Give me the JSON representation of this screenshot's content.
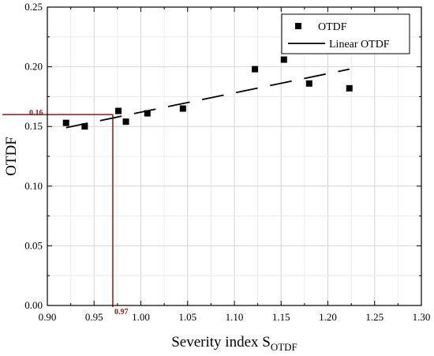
{
  "chart_data": {
    "type": "scatter",
    "xlabel_main": "Severity index S",
    "xlabel_sub": "OTDF",
    "ylabel": "OTDF",
    "xlim": [
      0.9,
      1.3
    ],
    "ylim": [
      0.0,
      0.25
    ],
    "x_ticks": [
      "0.90",
      "0.95",
      "1.00",
      "1.05",
      "1.10",
      "1.15",
      "1.20",
      "1.25",
      "1.30"
    ],
    "y_ticks": [
      "0.00",
      "0.05",
      "0.10",
      "0.15",
      "0.20",
      "0.25"
    ],
    "grid": true,
    "legend_position": "top-right",
    "series": [
      {
        "name": "OTDF",
        "marker": "square",
        "color": "#000000",
        "x": [
          0.92,
          0.94,
          0.976,
          0.984,
          1.007,
          1.045,
          1.122,
          1.153,
          1.18,
          1.223
        ],
        "y": [
          0.153,
          0.15,
          0.163,
          0.154,
          0.161,
          0.165,
          0.198,
          0.206,
          0.186,
          0.182
        ]
      },
      {
        "name": "Linear OTDF",
        "style": "dashed-line",
        "color": "#000000",
        "x": [
          0.92,
          1.223
        ],
        "y": [
          0.149,
          0.198
        ]
      }
    ],
    "annotations": [
      {
        "text": "0.16",
        "axis": "y",
        "value": 0.16,
        "color": "#8b1a1a"
      },
      {
        "text": "0.97",
        "axis": "x",
        "value": 0.97,
        "color": "#8b1a1a"
      }
    ]
  },
  "colors": {
    "marker": "#000000",
    "grid": "#d4d4d4",
    "annotation": "#8b1a1a",
    "axis": "#000000"
  }
}
